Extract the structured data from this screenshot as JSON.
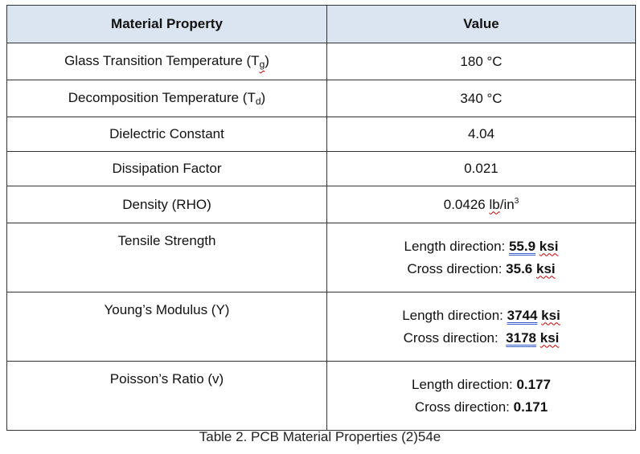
{
  "table": {
    "header": {
      "property": "Material Property",
      "value": "Value"
    },
    "rows": [
      {
        "label_pre": "Glass Transition Temperature (T",
        "label_sub": "g",
        "label_post": ")",
        "value": "180 °C"
      },
      {
        "label_pre": "Decomposition Temperature (T",
        "label_sub": "d",
        "label_post": ")",
        "value": "340 °C"
      },
      {
        "label": "Dielectric Constant",
        "value": "4.04"
      },
      {
        "label": "Dissipation Factor",
        "value": "0.021"
      },
      {
        "label": "Density (RHO)",
        "value_pre": "0.0426 ",
        "value_unit": "lb",
        "value_mid": "/in",
        "value_sup": "3"
      },
      {
        "label": "Tensile Strength",
        "line1_label": "Length direction: ",
        "line1_value": "55.9",
        "line1_unit": "ksi",
        "line2_label": "Cross direction: ",
        "line2_value": "35.6",
        "line2_unit": "ksi"
      },
      {
        "label": "Young’s Modulus (Y)",
        "line1_label": "Length direction: ",
        "line1_value": "3744",
        "line1_unit": "ksi",
        "line2_label": "Cross direction:  ",
        "line2_value": "3178",
        "line2_unit": "ksi"
      },
      {
        "label": "Poisson’s Ratio (v)",
        "line1_label": "Length direction: ",
        "line1_value": "0.177",
        "line2_label": "Cross direction: ",
        "line2_value": "0.171"
      }
    ]
  },
  "caption": "Table 2. PCB Material Properties (2)54e"
}
